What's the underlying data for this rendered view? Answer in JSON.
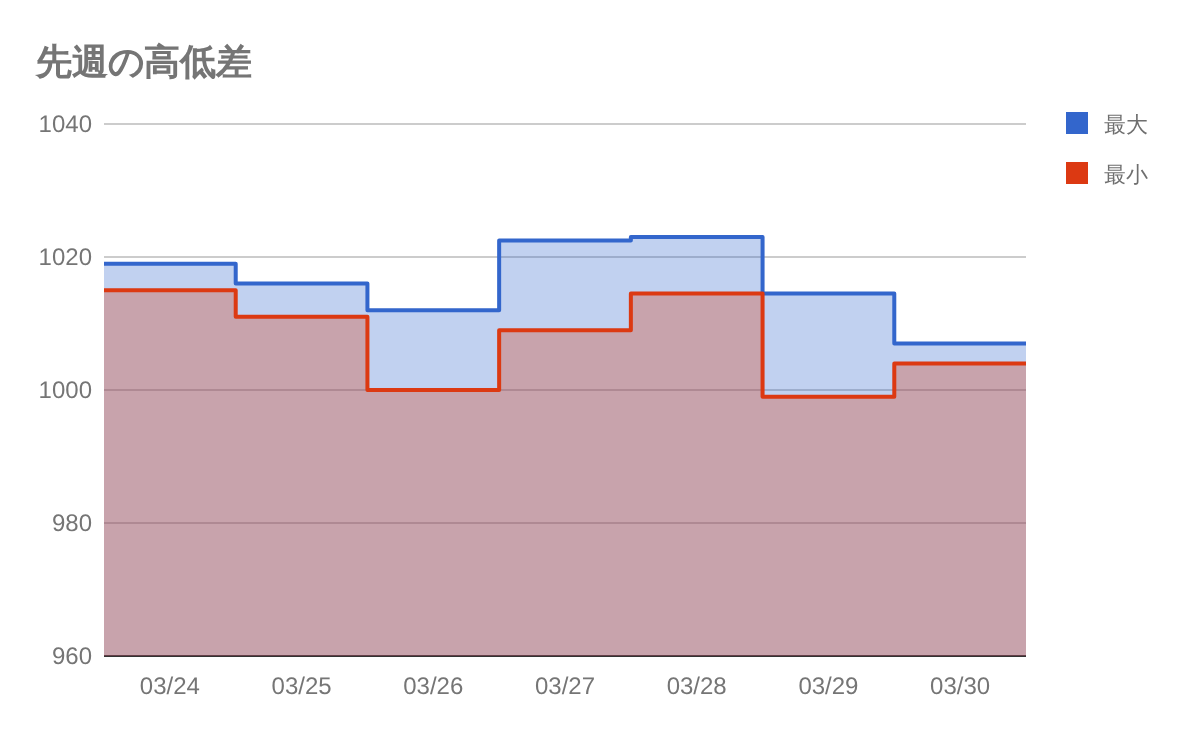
{
  "chart_data": {
    "type": "area",
    "title": "先週の高低差",
    "categories": [
      "03/24",
      "03/25",
      "03/26",
      "03/27",
      "03/28",
      "03/29",
      "03/30"
    ],
    "series": [
      {
        "name": "最大",
        "color": "#3366cc",
        "values": [
          1019,
          1016,
          1012,
          1022.5,
          1023,
          1014.5,
          1007
        ]
      },
      {
        "name": "最小",
        "color": "#dc3912",
        "values": [
          1015,
          1011,
          1000,
          1009,
          1014.5,
          999,
          1004
        ]
      }
    ],
    "ylim": [
      960,
      1040
    ],
    "yticks": [
      960,
      980,
      1000,
      1020,
      1040
    ],
    "grid": "y",
    "legend": "right"
  }
}
